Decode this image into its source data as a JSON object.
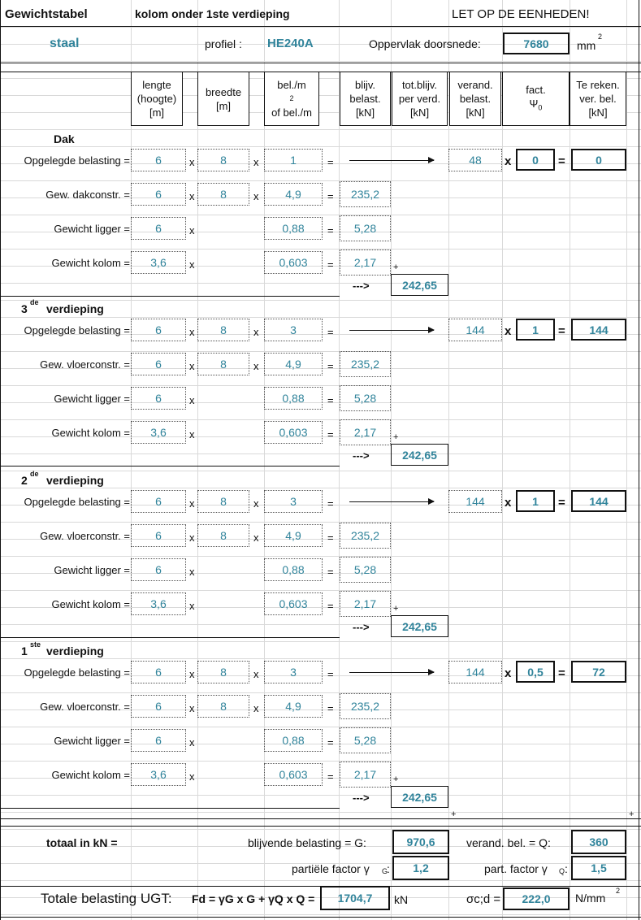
{
  "header": {
    "title": "Gewichtstabel",
    "subtitle": "kolom onder 1ste verdieping",
    "warning": "LET OP DE EENHEDEN!"
  },
  "material": {
    "name": "staal",
    "profile_label": "profiel :",
    "profile": "HE240A",
    "area_label": "Oppervlak doorsnede:",
    "area": "7680",
    "area_unit": "mm",
    "area_unit_sup": "2"
  },
  "columns": {
    "length": [
      "lengte",
      "(hoogte)",
      "[m]"
    ],
    "width": [
      "breedte",
      "[m]"
    ],
    "load": [
      "bel./m",
      "of bel./m"
    ],
    "load_sup": "2",
    "perm": [
      "blijv.",
      "belast.",
      "[kN]"
    ],
    "total_perm": [
      "tot.blijv.",
      "per verd.",
      "[kN]"
    ],
    "var": [
      "verand.",
      "belast.",
      "[kN]"
    ],
    "factor": [
      "fact.",
      "Ψ",
      "0"
    ],
    "calc_var": [
      "Te reken.",
      "ver. bel.",
      "[kN]"
    ]
  },
  "symbols": {
    "times": "x",
    "equals": "=",
    "plus": "+",
    "arrow_text": "--->"
  },
  "sections": [
    {
      "title": "Dak",
      "sup": "",
      "title_rest": "",
      "rows": [
        {
          "label": "Opgelegde belasting =",
          "l": "6",
          "w": "8",
          "q": "1",
          "var": "48",
          "psi": "0",
          "result": "0"
        },
        {
          "label": "Gew. dakconstr. =",
          "l": "6",
          "w": "8",
          "q": "4,9",
          "perm": "235,2"
        },
        {
          "label": "Gewicht ligger =",
          "l": "6",
          "q": "0,88",
          "perm": "5,28"
        },
        {
          "label": "Gewicht kolom =",
          "l": "3,6",
          "q": "0,603",
          "perm": "2,17"
        }
      ],
      "total": "242,65"
    },
    {
      "title": "3",
      "sup": "de",
      "title_rest": "verdieping",
      "rows": [
        {
          "label": "Opgelegde belasting =",
          "l": "6",
          "w": "8",
          "q": "3",
          "var": "144",
          "psi": "1",
          "result": "144"
        },
        {
          "label": "Gew. vloerconstr. =",
          "l": "6",
          "w": "8",
          "q": "4,9",
          "perm": "235,2"
        },
        {
          "label": "Gewicht ligger =",
          "l": "6",
          "q": "0,88",
          "perm": "5,28"
        },
        {
          "label": "Gewicht kolom =",
          "l": "3,6",
          "q": "0,603",
          "perm": "2,17"
        }
      ],
      "total": "242,65"
    },
    {
      "title": "2",
      "sup": "de",
      "title_rest": "verdieping",
      "rows": [
        {
          "label": "Opgelegde belasting =",
          "l": "6",
          "w": "8",
          "q": "3",
          "var": "144",
          "psi": "1",
          "result": "144"
        },
        {
          "label": "Gew. vloerconstr. =",
          "l": "6",
          "w": "8",
          "q": "4,9",
          "perm": "235,2"
        },
        {
          "label": "Gewicht ligger =",
          "l": "6",
          "q": "0,88",
          "perm": "5,28"
        },
        {
          "label": "Gewicht kolom =",
          "l": "3,6",
          "q": "0,603",
          "perm": "2,17"
        }
      ],
      "total": "242,65"
    },
    {
      "title": "1",
      "sup": "ste",
      "title_rest": "verdieping",
      "rows": [
        {
          "label": "Opgelegde belasting =",
          "l": "6",
          "w": "8",
          "q": "3",
          "var": "144",
          "psi": "0,5",
          "result": "72"
        },
        {
          "label": "Gew. vloerconstr. =",
          "l": "6",
          "w": "8",
          "q": "4,9",
          "perm": "235,2"
        },
        {
          "label": "Gewicht ligger =",
          "l": "6",
          "q": "0,88",
          "perm": "5,28"
        },
        {
          "label": "Gewicht kolom =",
          "l": "3,6",
          "q": "0,603",
          "perm": "2,17"
        }
      ],
      "total": "242,65"
    }
  ],
  "totals": {
    "label": "totaal in kN =",
    "G_label": "blijvende belasting = G:",
    "G": "970,6",
    "Q_label": "verand. bel. = Q:",
    "Q": "360",
    "gammaG_label": "partiële factor γ",
    "gammaG_sub": "G",
    "gammaG": "1,2",
    "gammaQ_label": "part. factor γ",
    "gammaQ_sub": "Q",
    "gammaQ": "1,5",
    "ugt_label": "Totale belasting UGT:",
    "formula": "Fd = γG x G + γQ x Q =",
    "Fd": "1704,7",
    "Fd_unit": "kN",
    "sigma_label": "σc;d =",
    "sigma": "222,0",
    "sigma_unit": "N/mm",
    "sigma_unit_sup": "2"
  }
}
